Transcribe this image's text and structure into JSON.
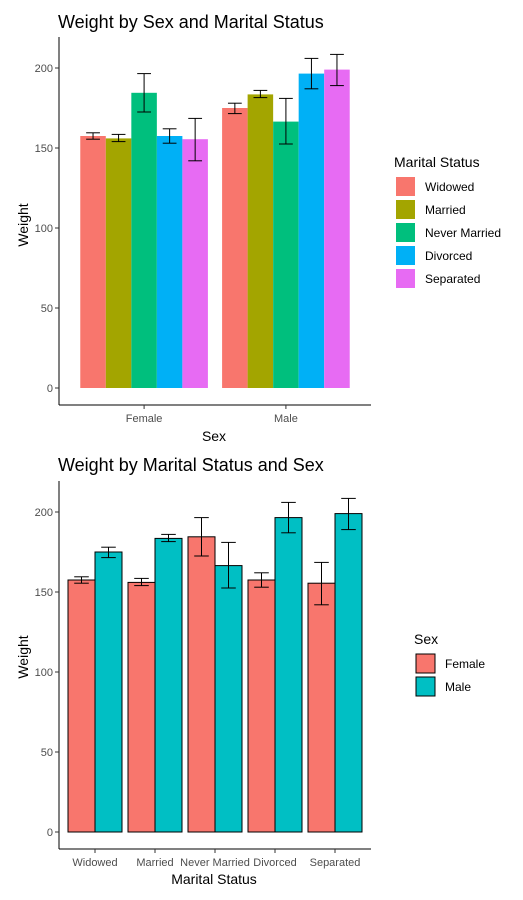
{
  "chart_data": [
    {
      "type": "bar",
      "title": "Weight by Sex and Marital Status",
      "xlabel": "Sex",
      "ylabel": "Weight",
      "ylim": [
        0,
        220
      ],
      "yticks": [
        0,
        50,
        100,
        150,
        200
      ],
      "categories": [
        "Female",
        "Male"
      ],
      "legend": {
        "title": "Marital Status",
        "position": "right"
      },
      "outline": false,
      "series": [
        {
          "name": "Widowed",
          "color": "#F8766D",
          "values": [
            157.5,
            175
          ],
          "err_low": [
            155.5,
            171.5
          ],
          "err_high": [
            159.5,
            178
          ]
        },
        {
          "name": "Married",
          "color": "#A3A500",
          "values": [
            156,
            183.5
          ],
          "err_low": [
            154,
            181.5
          ],
          "err_high": [
            158.5,
            186
          ]
        },
        {
          "name": "Never Married",
          "color": "#00BF7D",
          "values": [
            184.5,
            166.5
          ],
          "err_low": [
            172.5,
            152.5
          ],
          "err_high": [
            196.5,
            181
          ]
        },
        {
          "name": "Divorced",
          "color": "#00B0F6",
          "values": [
            157.5,
            196.5
          ],
          "err_low": [
            153,
            187
          ],
          "err_high": [
            162,
            206
          ]
        },
        {
          "name": "Separated",
          "color": "#E76BF3",
          "values": [
            155.5,
            199
          ],
          "err_low": [
            142,
            189
          ],
          "err_high": [
            168.5,
            208.5
          ]
        }
      ]
    },
    {
      "type": "bar",
      "title": "Weight by Marital Status and Sex",
      "xlabel": "Marital Status",
      "ylabel": "Weight",
      "ylim": [
        0,
        220
      ],
      "yticks": [
        0,
        50,
        100,
        150,
        200
      ],
      "categories": [
        "Widowed",
        "Married",
        "Never Married",
        "Divorced",
        "Separated"
      ],
      "legend": {
        "title": "Sex",
        "position": "right"
      },
      "outline": true,
      "series": [
        {
          "name": "Female",
          "color": "#F8766D",
          "values": [
            157.5,
            156,
            184.5,
            157.5,
            155.5
          ],
          "err_low": [
            155.5,
            154,
            172.5,
            153,
            142
          ],
          "err_high": [
            159.5,
            158.5,
            196.5,
            162,
            168.5
          ]
        },
        {
          "name": "Male",
          "color": "#00BFC4",
          "values": [
            175,
            183.5,
            166.5,
            196.5,
            199
          ],
          "err_low": [
            171.5,
            181.5,
            152.5,
            187,
            189
          ],
          "err_high": [
            178,
            186,
            181,
            206,
            208.5
          ]
        }
      ]
    }
  ]
}
